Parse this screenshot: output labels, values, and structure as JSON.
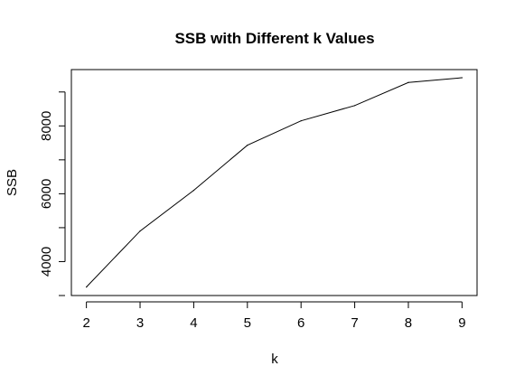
{
  "chart_data": {
    "type": "line",
    "title": "SSB with Different k Values",
    "xlabel": "k",
    "ylabel": "SSB",
    "x": [
      2,
      3,
      4,
      5,
      6,
      7,
      8,
      9
    ],
    "series": [
      {
        "values": [
          3250,
          4900,
          6100,
          7430,
          8150,
          8600,
          9280,
          9420
        ]
      }
    ],
    "x_ticks": [
      2,
      3,
      4,
      5,
      6,
      7,
      8,
      9
    ],
    "y_ticks": [
      4000,
      6000,
      8000
    ],
    "y_tick_labels": [
      "4000",
      "6000",
      "8000"
    ],
    "xlim": [
      1.72,
      9.28
    ],
    "ylim": [
      3000,
      9660
    ],
    "grid": false,
    "legend": "none",
    "colors": {
      "line": "#000000",
      "axis": "#000000",
      "background": "#ffffff"
    }
  }
}
